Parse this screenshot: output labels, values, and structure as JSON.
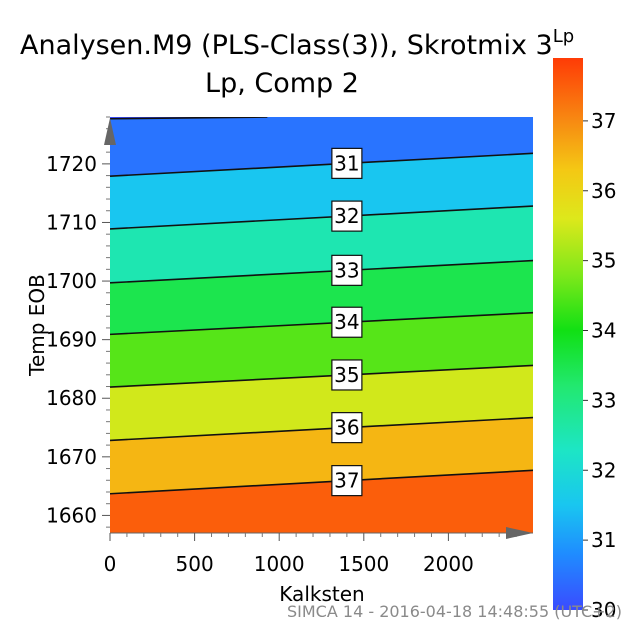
{
  "chart_data": {
    "type": "contour",
    "title_line1": "Analysen.M9 (PLS-Class(3)), Skrotmix 3",
    "title_superscript": "Lp",
    "title_line2": "Lp, Comp 2",
    "xlabel": "Kalksten",
    "ylabel": "Temp EOB",
    "xlim": [
      0,
      2500
    ],
    "ylim": [
      1657,
      1728
    ],
    "x_ticks": [
      0,
      500,
      1000,
      1500,
      2000
    ],
    "y_ticks": [
      1660,
      1670,
      1680,
      1690,
      1700,
      1710,
      1720
    ],
    "colorbar": {
      "title": "Lp",
      "range": [
        30,
        37.9
      ],
      "ticks": [
        30,
        31,
        32,
        33,
        34,
        35,
        36,
        37
      ],
      "stops": [
        {
          "value": 30.0,
          "color": "#3a4bff"
        },
        {
          "value": 30.8,
          "color": "#1f8cff"
        },
        {
          "value": 31.5,
          "color": "#19c6f0"
        },
        {
          "value": 32.3,
          "color": "#1de6c4"
        },
        {
          "value": 33.2,
          "color": "#22e870"
        },
        {
          "value": 34.0,
          "color": "#11e014"
        },
        {
          "value": 34.8,
          "color": "#7fe81a"
        },
        {
          "value": 35.6,
          "color": "#dde81b"
        },
        {
          "value": 36.3,
          "color": "#f4c814"
        },
        {
          "value": 37.0,
          "color": "#f78a12"
        },
        {
          "value": 37.9,
          "color": "#ff3b06"
        }
      ]
    },
    "contours": [
      {
        "level": 30,
        "x": [
          0,
          930
        ],
        "y": [
          1727.7,
          1728
        ]
      },
      {
        "level": 31,
        "x": [
          0,
          2500
        ],
        "y": [
          1717.9,
          1721.8
        ],
        "label": "31"
      },
      {
        "level": 32,
        "x": [
          0,
          2500
        ],
        "y": [
          1708.9,
          1712.8
        ],
        "label": "32"
      },
      {
        "level": 33,
        "x": [
          0,
          2500
        ],
        "y": [
          1699.7,
          1703.5
        ],
        "label": "33"
      },
      {
        "level": 34,
        "x": [
          0,
          2500
        ],
        "y": [
          1690.9,
          1694.6
        ],
        "label": "34"
      },
      {
        "level": 35,
        "x": [
          0,
          2500
        ],
        "y": [
          1681.9,
          1685.6
        ],
        "label": "35"
      },
      {
        "level": 36,
        "x": [
          0,
          2500
        ],
        "y": [
          1672.8,
          1676.7
        ],
        "label": "36"
      },
      {
        "level": 37,
        "x": [
          0,
          2500
        ],
        "y": [
          1663.7,
          1667.7
        ],
        "label": "37"
      }
    ],
    "label_x": 1400,
    "footer": "SIMCA 14 - 2016-04-18 14:48:55 (UTC+2)"
  }
}
